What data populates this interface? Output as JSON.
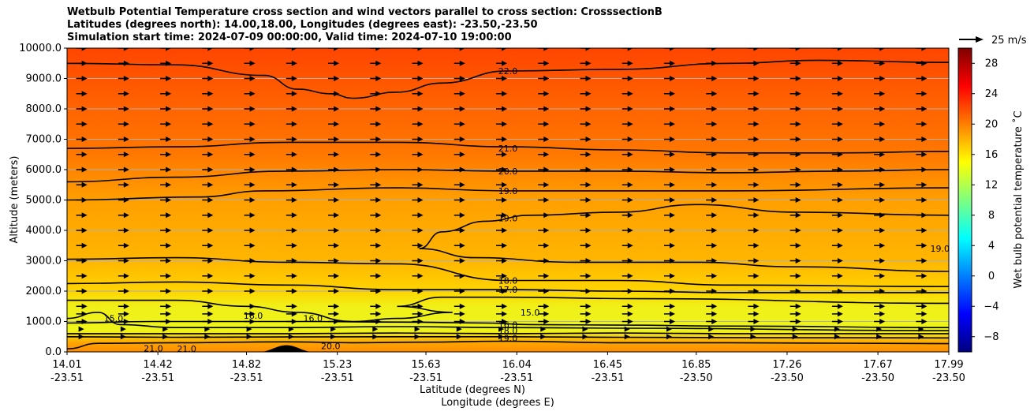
{
  "chart_data": {
    "type": "contour",
    "title_lines": [
      "Wetbulb Potential Temperature cross section and wind vectors parallel to cross section: CrosssectionB",
      "Latitudes (degrees north): 14.00,18.00, Longitudes (degrees east): -23.50,-23.50",
      "Simulation start time: 2024-07-09 00:00:00, Valid time: 2024-07-10 19:00:00"
    ],
    "xlabel_lines": [
      "Latitude (degrees N)",
      "Longitude (degrees E)"
    ],
    "ylabel": "Altitude (meters)",
    "x_ticks": [
      {
        "lat": "14.01",
        "lon": "-23.51"
      },
      {
        "lat": "14.42",
        "lon": "-23.51"
      },
      {
        "lat": "14.82",
        "lon": "-23.51"
      },
      {
        "lat": "15.23",
        "lon": "-23.51"
      },
      {
        "lat": "15.63",
        "lon": "-23.51"
      },
      {
        "lat": "16.04",
        "lon": "-23.51"
      },
      {
        "lat": "16.45",
        "lon": "-23.51"
      },
      {
        "lat": "16.85",
        "lon": "-23.50"
      },
      {
        "lat": "17.26",
        "lon": "-23.50"
      },
      {
        "lat": "17.67",
        "lon": "-23.50"
      },
      {
        "lat": "17.99",
        "lon": "-23.50"
      }
    ],
    "x_range": [
      14.01,
      17.99
    ],
    "y_ticks": [
      "0.0",
      "1000.0",
      "2000.0",
      "3000.0",
      "4000.0",
      "5000.0",
      "6000.0",
      "7000.0",
      "8000.0",
      "9000.0",
      "10000.0"
    ],
    "y_range": [
      0,
      10000
    ],
    "grid": "horizontal",
    "colorbar": {
      "label": "Wet bulb potential temperature ˚C",
      "ticks": [
        "−8",
        "−4",
        "0",
        "4",
        "8",
        "12",
        "16",
        "20",
        "24",
        "28"
      ],
      "range": [
        -10,
        30
      ],
      "colormap": "jet",
      "stops": [
        "#00007f",
        "#0000ff",
        "#007fff",
        "#00ffff",
        "#7fff7f",
        "#ffff00",
        "#ff7f00",
        "#ff0000",
        "#7f0000"
      ]
    },
    "wind_key": {
      "label": "25 m/s",
      "speed": 25
    },
    "background_fill": [
      {
        "y": 0,
        "color": "#ff8c00"
      },
      {
        "y": 300,
        "color": "#ffa500"
      },
      {
        "y": 700,
        "color": "#eef51a"
      },
      {
        "y": 1500,
        "color": "#f0f018"
      },
      {
        "y": 2000,
        "color": "#ffd400"
      },
      {
        "y": 3000,
        "color": "#ffb600"
      },
      {
        "y": 5000,
        "color": "#ff9f00"
      },
      {
        "y": 6500,
        "color": "#ff7800"
      },
      {
        "y": 8500,
        "color": "#ff5d00"
      },
      {
        "y": 10000,
        "color": "#ff4500"
      }
    ],
    "contours": [
      {
        "level": "22.0",
        "points": [
          [
            14.01,
            9500
          ],
          [
            14.5,
            9450
          ],
          [
            14.9,
            9100
          ],
          [
            15.05,
            8650
          ],
          [
            15.2,
            8500
          ],
          [
            15.3,
            8350
          ],
          [
            15.5,
            8550
          ],
          [
            15.7,
            8850
          ],
          [
            16.0,
            9250
          ],
          [
            16.5,
            9300
          ],
          [
            17.0,
            9500
          ],
          [
            17.4,
            9600
          ],
          [
            17.99,
            9530
          ]
        ]
      },
      {
        "level": "21.0",
        "points": [
          [
            14.01,
            6700
          ],
          [
            14.5,
            6750
          ],
          [
            15.0,
            6900
          ],
          [
            15.5,
            6900
          ],
          [
            16.0,
            6750
          ],
          [
            16.5,
            6650
          ],
          [
            17.0,
            6550
          ],
          [
            17.5,
            6550
          ],
          [
            17.99,
            6600
          ]
        ]
      },
      {
        "level": "20.0",
        "points": [
          [
            14.01,
            5600
          ],
          [
            14.5,
            5750
          ],
          [
            15.0,
            5950
          ],
          [
            15.5,
            6000
          ],
          [
            16.0,
            5950
          ],
          [
            16.5,
            5950
          ],
          [
            17.0,
            5900
          ],
          [
            17.5,
            5950
          ],
          [
            17.99,
            6000
          ]
        ]
      },
      {
        "level": "19.0",
        "points": [
          [
            14.01,
            5000
          ],
          [
            14.6,
            5100
          ],
          [
            14.9,
            5300
          ],
          [
            15.5,
            5400
          ],
          [
            16.0,
            5300
          ],
          [
            16.5,
            5300
          ],
          [
            17.0,
            5300
          ],
          [
            17.99,
            5400
          ]
        ]
      },
      {
        "level": "19.0",
        "points": [
          [
            17.99,
            4500
          ],
          [
            17.3,
            4600
          ],
          [
            16.85,
            4850
          ],
          [
            16.5,
            4600
          ],
          [
            16.1,
            4500
          ],
          [
            15.9,
            4300
          ],
          [
            15.7,
            3950
          ],
          [
            15.6,
            3400
          ],
          [
            15.85,
            3100
          ],
          [
            16.3,
            2950
          ],
          [
            16.85,
            2950
          ],
          [
            17.3,
            2800
          ],
          [
            17.99,
            2650
          ]
        ]
      },
      {
        "level": "18.0",
        "points": [
          [
            14.01,
            3050
          ],
          [
            14.5,
            3100
          ],
          [
            15.0,
            2950
          ],
          [
            15.5,
            2900
          ],
          [
            16.0,
            2350
          ],
          [
            16.5,
            2350
          ],
          [
            17.0,
            2200
          ],
          [
            17.99,
            2150
          ]
        ]
      },
      {
        "level": "17.0",
        "points": [
          [
            14.01,
            2250
          ],
          [
            14.5,
            2300
          ],
          [
            15.0,
            2200
          ],
          [
            15.5,
            2050
          ],
          [
            16.0,
            2050
          ],
          [
            16.5,
            2000
          ],
          [
            17.0,
            1950
          ],
          [
            17.99,
            1950
          ]
        ]
      },
      {
        "level": "16.0",
        "points": [
          [
            14.01,
            1700
          ],
          [
            14.5,
            1700
          ],
          [
            14.82,
            1500
          ],
          [
            15.05,
            1300
          ],
          [
            15.3,
            1000
          ],
          [
            15.5,
            1100
          ],
          [
            15.75,
            1300
          ],
          [
            15.5,
            1500
          ],
          [
            15.7,
            1800
          ],
          [
            16.0,
            1800
          ],
          [
            16.6,
            1750
          ],
          [
            17.99,
            1600
          ]
        ]
      },
      {
        "level": "16.0",
        "points": [
          [
            14.01,
            950
          ],
          [
            14.4,
            1000
          ],
          [
            14.8,
            1000
          ],
          [
            15.1,
            1000
          ],
          [
            15.5,
            980
          ],
          [
            15.9,
            950
          ],
          [
            16.1,
            900
          ],
          [
            16.5,
            880
          ],
          [
            17.0,
            850
          ],
          [
            17.99,
            800
          ]
        ]
      },
      {
        "level": "15.0",
        "points": [
          [
            14.01,
            1100
          ],
          [
            14.15,
            1300
          ],
          [
            14.25,
            900
          ],
          [
            14.5,
            800
          ],
          [
            15.0,
            800
          ],
          [
            15.5,
            830
          ],
          [
            16.0,
            800
          ],
          [
            16.5,
            780
          ],
          [
            17.99,
            700
          ]
        ]
      },
      {
        "level": "18.0",
        "points": [
          [
            14.01,
            600
          ],
          [
            14.5,
            600
          ],
          [
            15.0,
            600
          ],
          [
            15.5,
            620
          ],
          [
            16.0,
            600
          ],
          [
            16.5,
            620
          ],
          [
            17.0,
            600
          ],
          [
            17.99,
            600
          ]
        ]
      },
      {
        "level": "19.0",
        "points": [
          [
            14.01,
            500
          ],
          [
            14.5,
            480
          ],
          [
            15.0,
            490
          ],
          [
            15.5,
            500
          ],
          [
            16.0,
            500
          ],
          [
            16.5,
            480
          ],
          [
            17.0,
            470
          ],
          [
            17.99,
            460
          ]
        ]
      },
      {
        "level": "20.0",
        "points": [
          [
            14.01,
            100
          ],
          [
            14.15,
            280
          ],
          [
            14.5,
            300
          ],
          [
            15.0,
            330
          ],
          [
            15.3,
            300
          ],
          [
            15.6,
            320
          ],
          [
            16.0,
            350
          ],
          [
            16.5,
            300
          ],
          [
            17.0,
            300
          ],
          [
            17.99,
            270
          ]
        ]
      }
    ],
    "contour_labels": [
      {
        "text": "22.0",
        "x": 16.0,
        "y": 9250
      },
      {
        "text": "21.0",
        "x": 16.0,
        "y": 6700
      },
      {
        "text": "20.0",
        "x": 16.0,
        "y": 5950
      },
      {
        "text": "19.0",
        "x": 16.0,
        "y": 5300
      },
      {
        "text": "19.0",
        "x": 16.0,
        "y": 4400
      },
      {
        "text": "19.0",
        "x": 17.95,
        "y": 3400
      },
      {
        "text": "18.0",
        "x": 16.0,
        "y": 2350
      },
      {
        "text": "17.0",
        "x": 16.0,
        "y": 2050
      },
      {
        "text": "16.0",
        "x": 14.85,
        "y": 1200
      },
      {
        "text": "16.0",
        "x": 15.12,
        "y": 1100
      },
      {
        "text": "16.0",
        "x": 16.0,
        "y": 900
      },
      {
        "text": "15.0",
        "x": 14.22,
        "y": 1100
      },
      {
        "text": "15.0",
        "x": 16.1,
        "y": 1300
      },
      {
        "text": "18.0",
        "x": 16.0,
        "y": 700
      },
      {
        "text": "19.0",
        "x": 16.0,
        "y": 450
      },
      {
        "text": "20.0",
        "x": 15.2,
        "y": 200
      },
      {
        "text": "21.0",
        "x": 14.4,
        "y": 120
      },
      {
        "text": "21.0",
        "x": 14.55,
        "y": 100
      }
    ],
    "terrain": {
      "peak_lat": 15.0,
      "peak_altitude": 220,
      "half_width_deg": 0.12
    },
    "vectors": {
      "rows_y": [
        500,
        750,
        1000,
        1250,
        1500,
        2000,
        2500,
        3000,
        3500,
        4000,
        4500,
        5000,
        5500,
        6000,
        6500,
        7000,
        7500,
        8000,
        8500,
        9000,
        9500,
        10000
      ],
      "cols": 21,
      "direction": "right"
    }
  }
}
